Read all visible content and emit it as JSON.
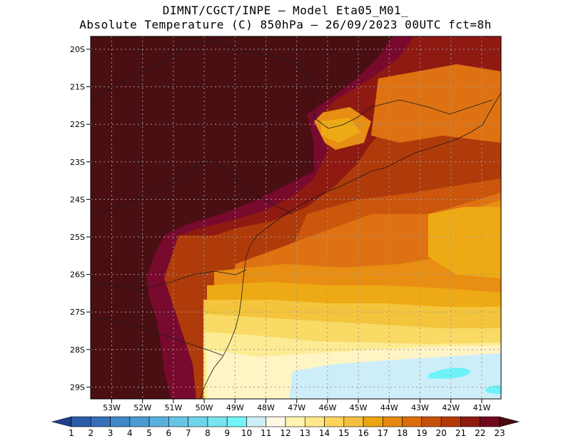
{
  "title": {
    "line1": "DIMNT/CGCT/INPE —  Model Eta05_M01_",
    "line2": "Absolute Temperature (C) 850hPa —  26/09/2023 00UTC fct=8h"
  },
  "axes": {
    "lat_labels": [
      "20S",
      "21S",
      "22S",
      "23S",
      "24S",
      "25S",
      "26S",
      "27S",
      "28S",
      "29S"
    ],
    "lon_labels": [
      "53W",
      "52W",
      "51W",
      "50W",
      "49W",
      "48W",
      "47W",
      "46W",
      "45W",
      "44W",
      "43W",
      "42W",
      "41W"
    ]
  },
  "colorbar": {
    "labels": [
      "1",
      "2",
      "3",
      "4",
      "5",
      "6",
      "7",
      "8",
      "9",
      "10",
      "11",
      "12",
      "13",
      "14",
      "15",
      "16",
      "17",
      "18",
      "19",
      "20",
      "21",
      "22",
      "23"
    ],
    "colors": [
      "#1f3f8f",
      "#2a5ca8",
      "#3571b8",
      "#3f87c6",
      "#4a9bd2",
      "#58b1dc",
      "#66c5e4",
      "#6fd6ea",
      "#78e4f0",
      "#73f3f8",
      "#cdeef8",
      "#fff8e4",
      "#fff4b0",
      "#ffe88a",
      "#fbd45a",
      "#f4be40",
      "#eca410",
      "#e58a10",
      "#dd6c0d",
      "#c9500a",
      "#b33a08",
      "#8f1a10",
      "#70081e",
      "#4a0a0f"
    ]
  },
  "palette": {
    "c23": "#4a0f12",
    "c22": "#780a2e",
    "c21": "#8e1a12",
    "c20": "#b03b0a",
    "c19": "#cb560c",
    "c18": "#de7212",
    "c17": "#e88e12",
    "c16": "#eeaa14",
    "c15": "#f3c43c",
    "c14": "#f8da64",
    "c13": "#fdeb94",
    "c12": "#fff4c4",
    "c11": "#fff8e8",
    "c10": "#cdeef8",
    "c9": "#6ef2fa"
  }
}
